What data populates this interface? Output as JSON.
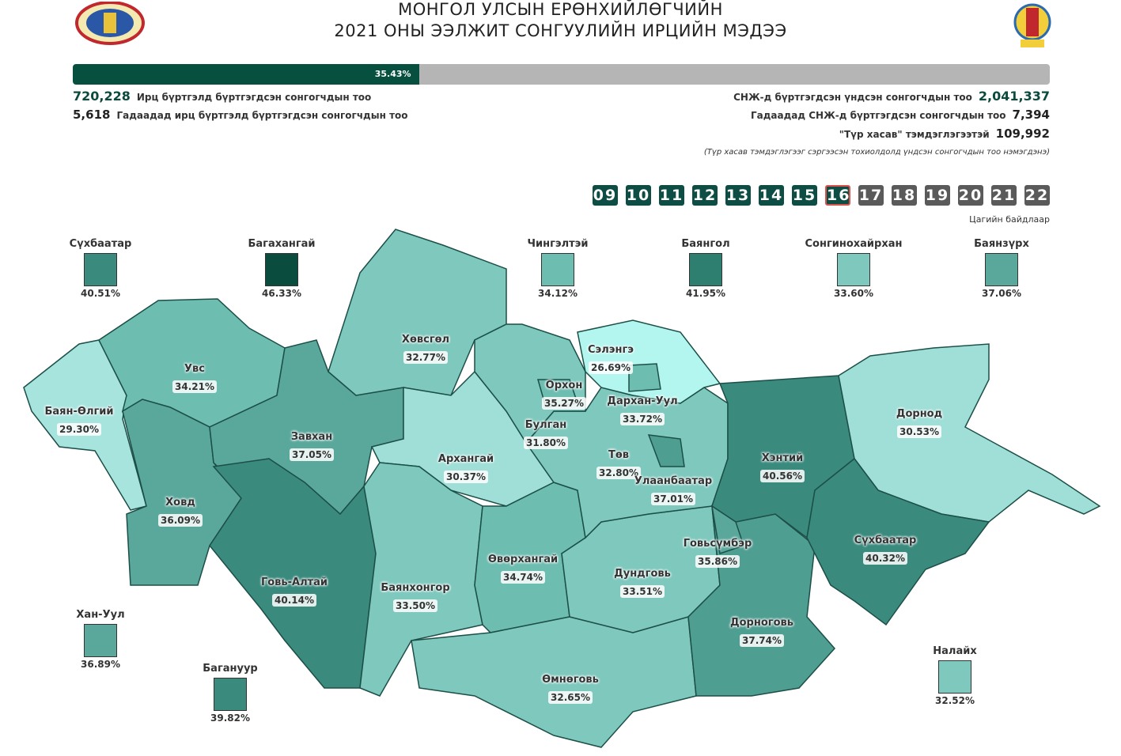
{
  "header": {
    "title_line1": "МОНГОЛ УЛСЫН ЕРӨНХИЙЛӨГЧИЙН",
    "title_line2": "2021 ОНЫ ЭЭЛЖИТ СОНГУУЛИЙН ИРЦИЙН МЭДЭЭ"
  },
  "progress": {
    "value": 35.43,
    "label": "35.43%",
    "color": "#07503f"
  },
  "stats_left": [
    {
      "number": "720,228",
      "label": "Ирц бүртгэлд бүртгэгдсэн сонгогчдын тоо"
    },
    {
      "number": "5,618",
      "label": "Гадаадад ирц бүртгэлд бүртгэгдсэн сонгогчдын тоо"
    }
  ],
  "stats_right": [
    {
      "label": "СНЖ-д бүртгэгдсэн үндсэн сонгогчдын тоо",
      "number": "2,041,337"
    },
    {
      "label": "Гадаадад СНЖ-д бүртгэгдсэн сонгогчдын тоо",
      "number": "7,394"
    },
    {
      "label": "\"Түр хасав\" тэмдэглэгээтэй",
      "number": "109,992"
    }
  ],
  "note": "(Түр хасав тэмдэглэгээг сэргээсэн тохиолдолд үндсэн сонгогчдын тоо нэмэгдэнэ)",
  "hours": {
    "items": [
      "09",
      "10",
      "11",
      "12",
      "13",
      "14",
      "15",
      "16",
      "17",
      "18",
      "19",
      "20",
      "21",
      "22"
    ],
    "selected": 7,
    "caption": "Цагийн байдлаар"
  },
  "districts": [
    {
      "name": "Сүхбаатар",
      "label": "40.51%",
      "color": "#3a8a7e"
    },
    {
      "name": "Багахангай",
      "label": "46.33%",
      "color": "#0a4d3f"
    },
    {
      "name": "Чингэлтэй",
      "label": "34.12%",
      "color": "#6dbdb1"
    },
    {
      "name": "Баянгол",
      "label": "41.95%",
      "color": "#2f7f71"
    },
    {
      "name": "Сонгинохайрхан",
      "label": "33.60%",
      "color": "#7ec8bd"
    },
    {
      "name": "Баянзүрх",
      "label": "37.06%",
      "color": "#5aa89c"
    },
    {
      "name": "Хан-Уул",
      "label": "36.89%",
      "color": "#5aa89c"
    },
    {
      "name": "Багануур",
      "label": "39.82%",
      "color": "#3a8a7e"
    },
    {
      "name": "Налайх",
      "label": "32.52%",
      "color": "#7ec8bd"
    }
  ],
  "provinces": [
    {
      "name": "Баян-Өлгий",
      "label": "29.30%",
      "color": "#a8e4de"
    },
    {
      "name": "Увс",
      "label": "34.21%",
      "color": "#6dbdb1"
    },
    {
      "name": "Ховд",
      "label": "36.09%",
      "color": "#5aa89c"
    },
    {
      "name": "Завхан",
      "label": "37.05%",
      "color": "#5aa89c"
    },
    {
      "name": "Говь-Алтай",
      "label": "40.14%",
      "color": "#3a8a7e"
    },
    {
      "name": "Хөвсгөл",
      "label": "32.77%",
      "color": "#7ec8bd"
    },
    {
      "name": "Архангай",
      "label": "30.37%",
      "color": "#9fdfd7"
    },
    {
      "name": "Баянхонгор",
      "label": "33.50%",
      "color": "#7ec8bd"
    },
    {
      "name": "Өвөрхангай",
      "label": "34.74%",
      "color": "#6dbdb1"
    },
    {
      "name": "Өмнөговь",
      "label": "32.65%",
      "color": "#7ec8bd"
    },
    {
      "name": "Дундговь",
      "label": "33.51%",
      "color": "#7ec8bd"
    },
    {
      "name": "Дорноговь",
      "label": "37.74%",
      "color": "#4f9e92"
    },
    {
      "name": "Төв",
      "label": "32.80%",
      "color": "#7ec8bd"
    },
    {
      "name": "Булган",
      "label": "31.80%",
      "color": "#7ec8bd"
    },
    {
      "name": "Орхон",
      "label": "35.27%",
      "color": "#6dbdb1"
    },
    {
      "name": "Сэлэнгэ",
      "label": "26.69%",
      "color": "#b3f6ef"
    },
    {
      "name": "Дархан-Уул",
      "label": "33.72%",
      "color": "#6dbdb1"
    },
    {
      "name": "Улаанбаатар",
      "label": "37.01%",
      "color": "#4f9e92"
    },
    {
      "name": "Хэнтий",
      "label": "40.56%",
      "color": "#3a8a7e"
    },
    {
      "name": "Дорнод",
      "label": "30.53%",
      "color": "#9fdfd7"
    },
    {
      "name": "Сүхбаатар",
      "label": "40.32%",
      "color": "#3a8a7e"
    },
    {
      "name": "Говьсүмбэр",
      "label": "35.86%",
      "color": "#5aa89c"
    }
  ]
}
